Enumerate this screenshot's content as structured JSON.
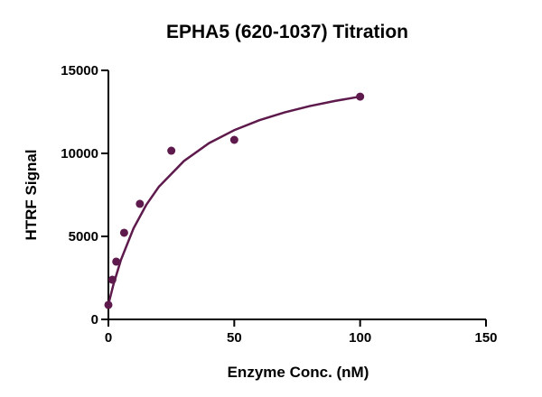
{
  "chart_data": {
    "type": "scatter",
    "title": "EPHA5 (620-1037) Titration",
    "x_label": "Enzyme Conc. (nM)",
    "y_label": "HTRF Signal",
    "series": [
      {
        "mode": "markers",
        "color": "#5e1a4c",
        "x": [
          0,
          1.5625,
          3.125,
          6.25,
          12.5,
          25,
          50,
          100
        ],
        "values": [
          870,
          2390,
          3480,
          5220,
          6960,
          10160,
          10815,
          13420
        ]
      },
      {
        "mode": "line",
        "color": "#5e1a4c",
        "x": [
          0,
          2,
          5,
          10,
          15,
          20,
          30,
          40,
          50,
          60,
          70,
          80,
          90,
          100
        ],
        "values": [
          900,
          2100,
          3590,
          5490,
          6890,
          7980,
          9540,
          10620,
          11400,
          12000,
          12470,
          12850,
          13160,
          13420
        ]
      }
    ],
    "xlim": [
      0,
      150
    ],
    "xticks": [
      0,
      50,
      100,
      150
    ],
    "ylim": [
      0,
      15000
    ],
    "yticks": [
      0,
      5000,
      10000,
      15000
    ]
  }
}
